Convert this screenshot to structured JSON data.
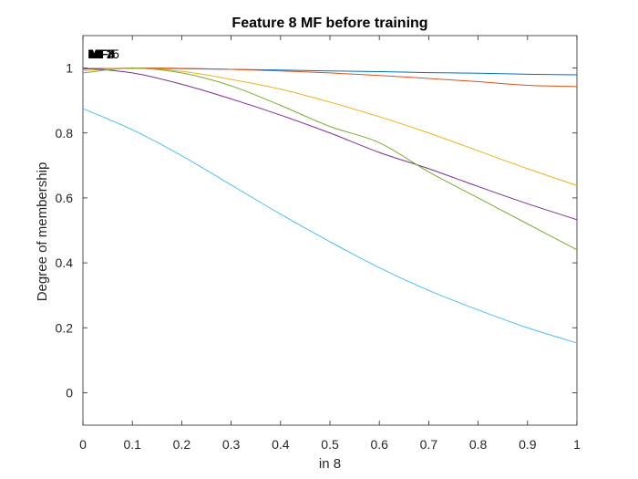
{
  "chart_data": {
    "type": "line",
    "title": "Feature  8 MF before training",
    "xlabel": "in 8",
    "ylabel": "Degree of membership",
    "xlim": [
      0,
      1
    ],
    "ylim": [
      -0.1,
      1.1
    ],
    "xticks": [
      "0",
      "0.1",
      "0.2",
      "0.3",
      "0.4",
      "0.5",
      "0.6",
      "0.7",
      "0.8",
      "0.9",
      "1"
    ],
    "yticks": [
      "0",
      "0.2",
      "0.4",
      "0.6",
      "0.8",
      "1"
    ],
    "grid": false,
    "mf_labels": [
      "MF1",
      "MF2",
      "MF3",
      "MF4",
      "MF5",
      "MF 5"
    ],
    "series": [
      {
        "color": "#0072BD",
        "x": [
          0,
          0.1,
          0.2,
          0.3,
          0.4,
          0.5,
          0.6,
          0.7,
          0.8,
          0.9,
          1
        ],
        "y": [
          0.998,
          0.999,
          0.998,
          0.996,
          0.994,
          0.991,
          0.989,
          0.986,
          0.984,
          0.981,
          0.979
        ]
      },
      {
        "color": "#D95319",
        "x": [
          0,
          0.1,
          0.2,
          0.3,
          0.4,
          0.5,
          0.6,
          0.7,
          0.8,
          0.9,
          1
        ],
        "y": [
          0.997,
          1.0,
          0.999,
          0.996,
          0.991,
          0.985,
          0.977,
          0.968,
          0.958,
          0.947,
          0.943
        ]
      },
      {
        "color": "#EDB120",
        "x": [
          0,
          0.1,
          0.2,
          0.3,
          0.4,
          0.5,
          0.6,
          0.7,
          0.8,
          0.9,
          1
        ],
        "y": [
          0.992,
          1.0,
          0.99,
          0.965,
          0.935,
          0.895,
          0.85,
          0.8,
          0.745,
          0.69,
          0.638
        ]
      },
      {
        "color": "#7E2F8E",
        "x": [
          0,
          0.1,
          0.2,
          0.3,
          0.4,
          0.5,
          0.6,
          0.7,
          0.8,
          0.9,
          1
        ],
        "y": [
          1.0,
          0.985,
          0.95,
          0.905,
          0.855,
          0.8,
          0.74,
          0.69,
          0.635,
          0.582,
          0.533
        ]
      },
      {
        "color": "#77AC30",
        "x": [
          0,
          0.1,
          0.2,
          0.3,
          0.4,
          0.5,
          0.6,
          0.7,
          0.8,
          0.9,
          1
        ],
        "y": [
          0.985,
          1.0,
          0.985,
          0.945,
          0.885,
          0.82,
          0.77,
          0.68,
          0.6,
          0.52,
          0.44
        ]
      },
      {
        "color": "#4DBEEE",
        "x": [
          0,
          0.1,
          0.2,
          0.3,
          0.4,
          0.5,
          0.6,
          0.7,
          0.8,
          0.9,
          1
        ],
        "y": [
          0.875,
          0.81,
          0.73,
          0.64,
          0.55,
          0.465,
          0.385,
          0.315,
          0.255,
          0.2,
          0.153
        ]
      }
    ]
  }
}
